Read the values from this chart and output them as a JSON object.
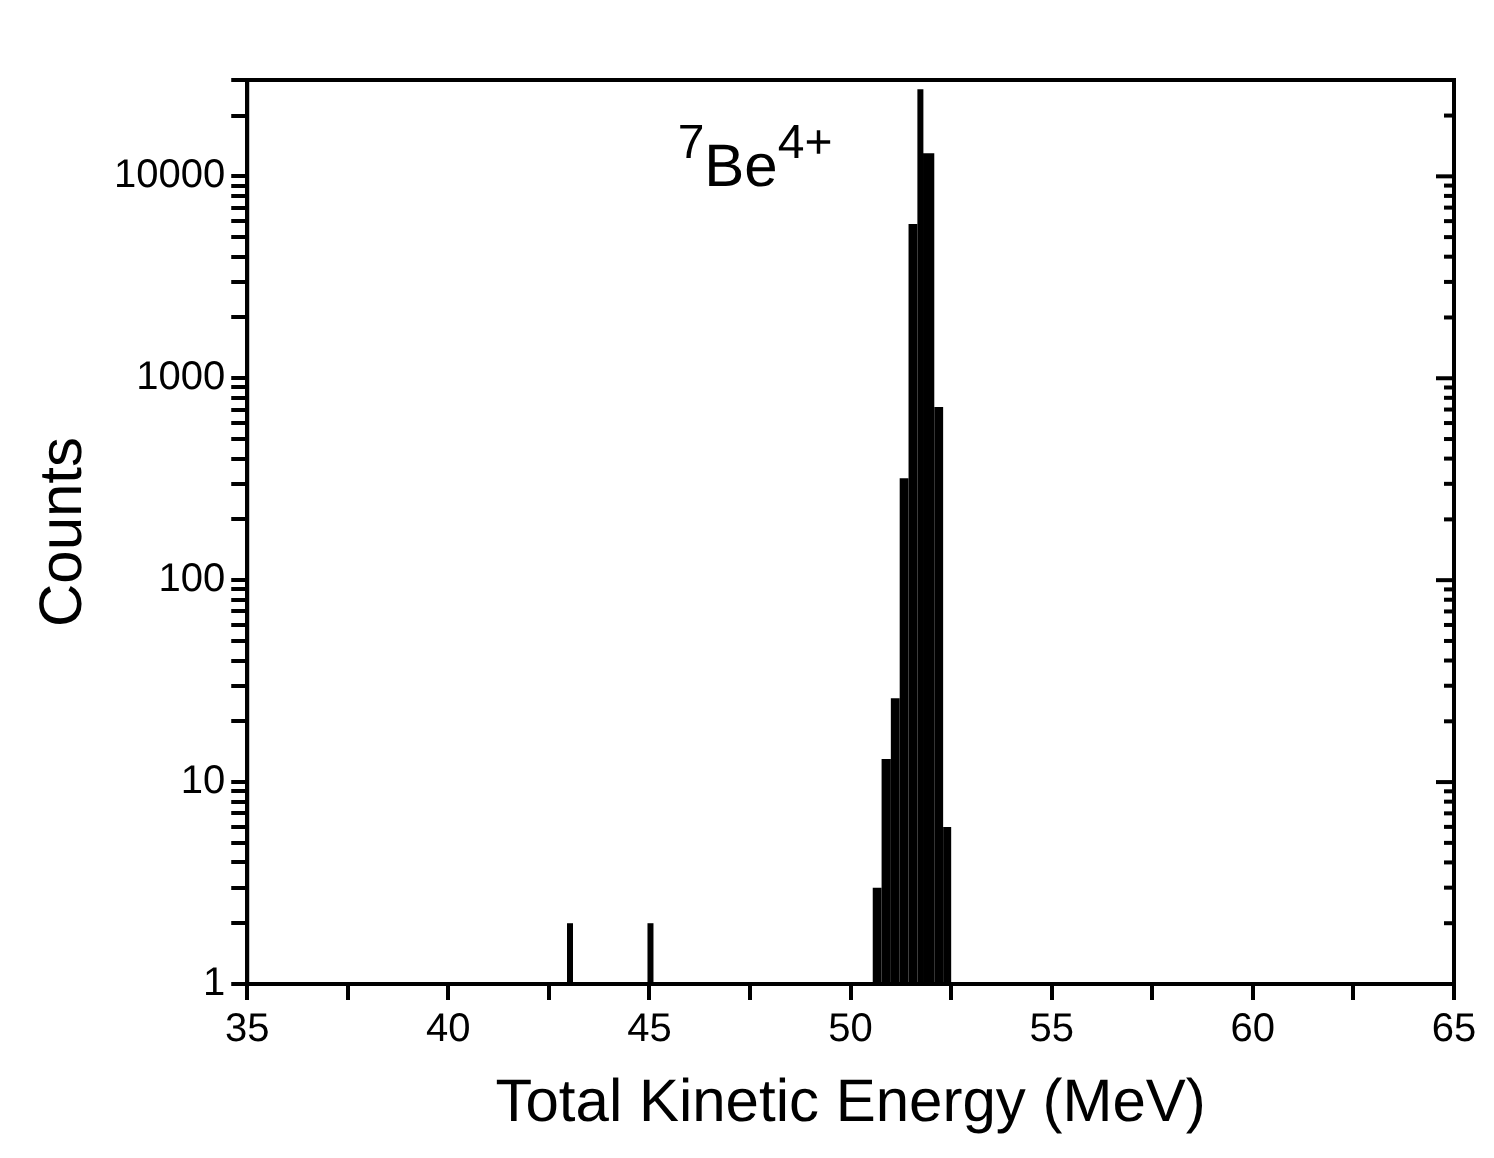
{
  "chart_data": {
    "type": "histogram",
    "xlabel": "Total Kinetic Energy (MeV)",
    "ylabel": "Counts",
    "annotations": [
      "$^{7}$Be$^{4+}$"
    ],
    "bins": [
      42.95,
      43.05,
      44.95,
      45.05,
      50.55,
      50.77,
      51.0,
      51.22,
      51.44,
      51.66,
      51.8,
      52.08,
      52.3,
      52.5
    ],
    "values": [
      2,
      null,
      2,
      null,
      3,
      13,
      26,
      320,
      5800,
      27000,
      13000,
      720,
      6
    ],
    "color": "#000000",
    "xlim": [
      35,
      65
    ],
    "xticks": [
      35,
      {
        "value": 37.5,
        "label": null
      },
      40,
      {
        "value": 42.5,
        "label": null
      },
      45,
      {
        "value": 47.5,
        "label": null
      },
      50,
      {
        "value": 52.5,
        "label": null
      },
      55,
      {
        "value": 57.5,
        "label": null
      },
      60,
      {
        "value": 62.5,
        "label": null
      },
      65
    ],
    "ylim": [
      1,
      30000
    ],
    "yticks": [
      1,
      {
        "value": 2,
        "label": null
      },
      {
        "value": 3,
        "label": null
      },
      {
        "value": 4,
        "label": null
      },
      {
        "value": 5,
        "label": null
      },
      {
        "value": 6,
        "label": null
      },
      {
        "value": 7,
        "label": null
      },
      {
        "value": 8,
        "label": null
      },
      {
        "value": 9,
        "label": null
      },
      10,
      {
        "value": 20,
        "label": null
      },
      {
        "value": 30,
        "label": null
      },
      {
        "value": 40,
        "label": null
      },
      {
        "value": 50,
        "label": null
      },
      {
        "value": 60,
        "label": null
      },
      {
        "value": 70,
        "label": null
      },
      {
        "value": 80,
        "label": null
      },
      {
        "value": 90,
        "label": null
      },
      100,
      {
        "value": 200,
        "label": null
      },
      {
        "value": 300,
        "label": null
      },
      {
        "value": 400,
        "label": null
      },
      {
        "value": 500,
        "label": null
      },
      {
        "value": 600,
        "label": null
      },
      {
        "value": 700,
        "label": null
      },
      {
        "value": 800,
        "label": null
      },
      {
        "value": 900,
        "label": null
      },
      1000,
      {
        "value": 2000,
        "label": null
      },
      {
        "value": 3000,
        "label": null
      },
      {
        "value": 4000,
        "label": null
      },
      {
        "value": 5000,
        "label": null
      },
      {
        "value": 6000,
        "label": null
      },
      {
        "value": 7000,
        "label": null
      },
      {
        "value": 8000,
        "label": null
      },
      {
        "value": 9000,
        "label": null
      },
      10000,
      {
        "value": 20000,
        "label": null
      },
      {
        "value": 30000,
        "label": null
      }
    ],
    "log": "y",
    "grid": false,
    "legend": false
  }
}
